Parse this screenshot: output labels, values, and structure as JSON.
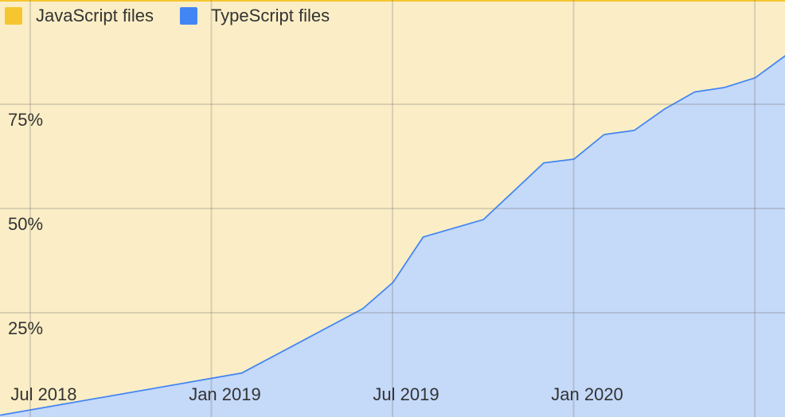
{
  "chart_data": {
    "type": "area",
    "x": [
      "2018-06",
      "2019-02",
      "2019-06",
      "2019-07",
      "2019-08",
      "2019-10",
      "2019-12",
      "2020-01",
      "2020-02",
      "2020-03",
      "2020-04",
      "2020-05",
      "2020-06",
      "2020-07",
      "2020-08"
    ],
    "series": [
      {
        "name": "TypeScript files",
        "color": "#4285f4",
        "values": [
          0.6,
          10.7,
          26.1,
          32.4,
          43.3,
          47.5,
          61.1,
          62.0,
          67.9,
          68.9,
          74.0,
          78.1,
          79.2,
          81.5,
          86.8
        ]
      },
      {
        "name": "JavaScript files",
        "color": "#f6c630",
        "values": [
          99.4,
          89.3,
          73.9,
          67.6,
          56.7,
          52.5,
          38.9,
          38.0,
          32.1,
          31.1,
          26.0,
          21.9,
          20.8,
          18.5,
          13.2
        ]
      }
    ],
    "stacked": true,
    "xlim": [
      "2018-06",
      "2020-08"
    ],
    "xticks": [
      {
        "value": "2018-07",
        "label": "Jul 2018"
      },
      {
        "value": "2019-01",
        "label": "Jan 2019"
      },
      {
        "value": "2019-07",
        "label": "Jul 2019"
      },
      {
        "value": "2020-01",
        "label": "Jan 2020"
      },
      {
        "value": "2020-07",
        "label": null
      }
    ],
    "ylim": [
      0,
      100
    ],
    "yticks": [
      {
        "value": 25,
        "label": "25%"
      },
      {
        "value": 50,
        "label": "50%"
      },
      {
        "value": 75,
        "label": "75%"
      }
    ],
    "grid": true,
    "legend": "top-left"
  }
}
